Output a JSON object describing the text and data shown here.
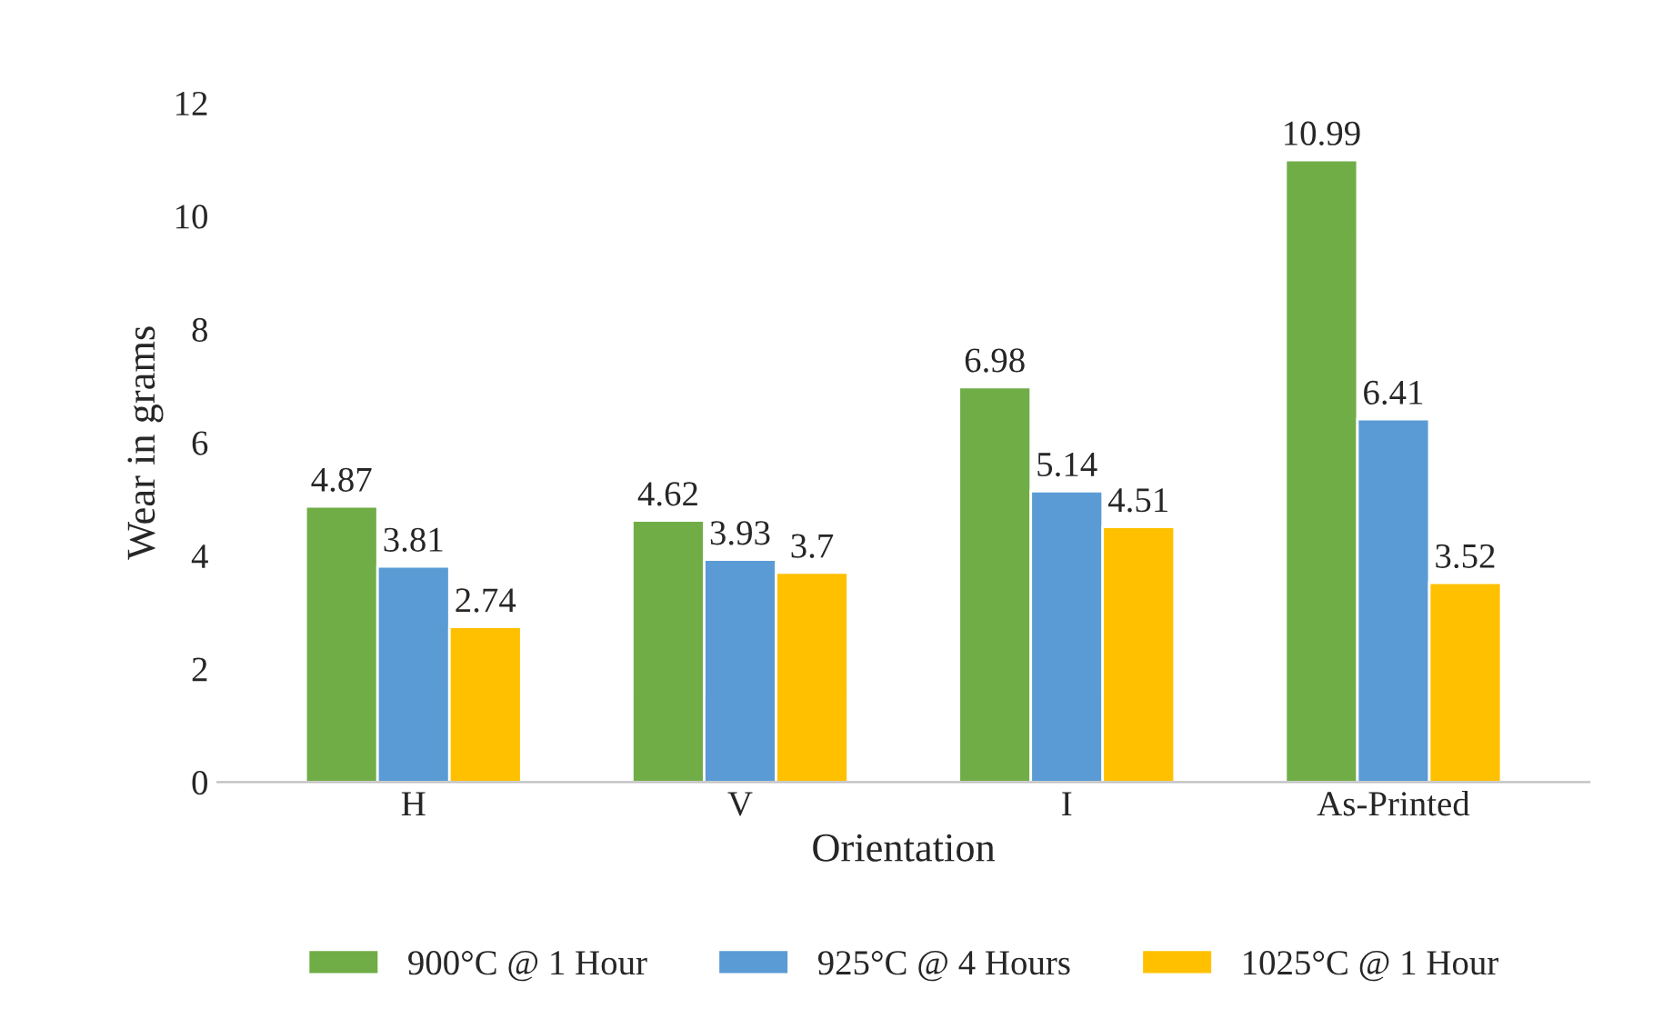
{
  "chart_data": {
    "type": "bar",
    "xlabel": "Orientation",
    "ylabel": "Wear in grams",
    "categories": [
      "H",
      "V",
      "I",
      "As-Printed"
    ],
    "series": [
      {
        "name": "900°C @ 1 Hour",
        "color": "#70ad47",
        "values": [
          4.87,
          4.62,
          6.98,
          10.99
        ]
      },
      {
        "name": "925°C @ 4 Hours",
        "color": "#5b9bd5",
        "values": [
          3.81,
          3.93,
          5.14,
          6.41
        ]
      },
      {
        "name": "1025°C @ 1 Hour",
        "color": "#ffc000",
        "values": [
          2.74,
          3.7,
          4.51,
          3.52
        ]
      }
    ],
    "ylim": [
      0,
      12
    ],
    "yticks": [
      0,
      2,
      4,
      6,
      8,
      10,
      12
    ],
    "grid": false,
    "legend": "bottom",
    "data_labels": true
  }
}
